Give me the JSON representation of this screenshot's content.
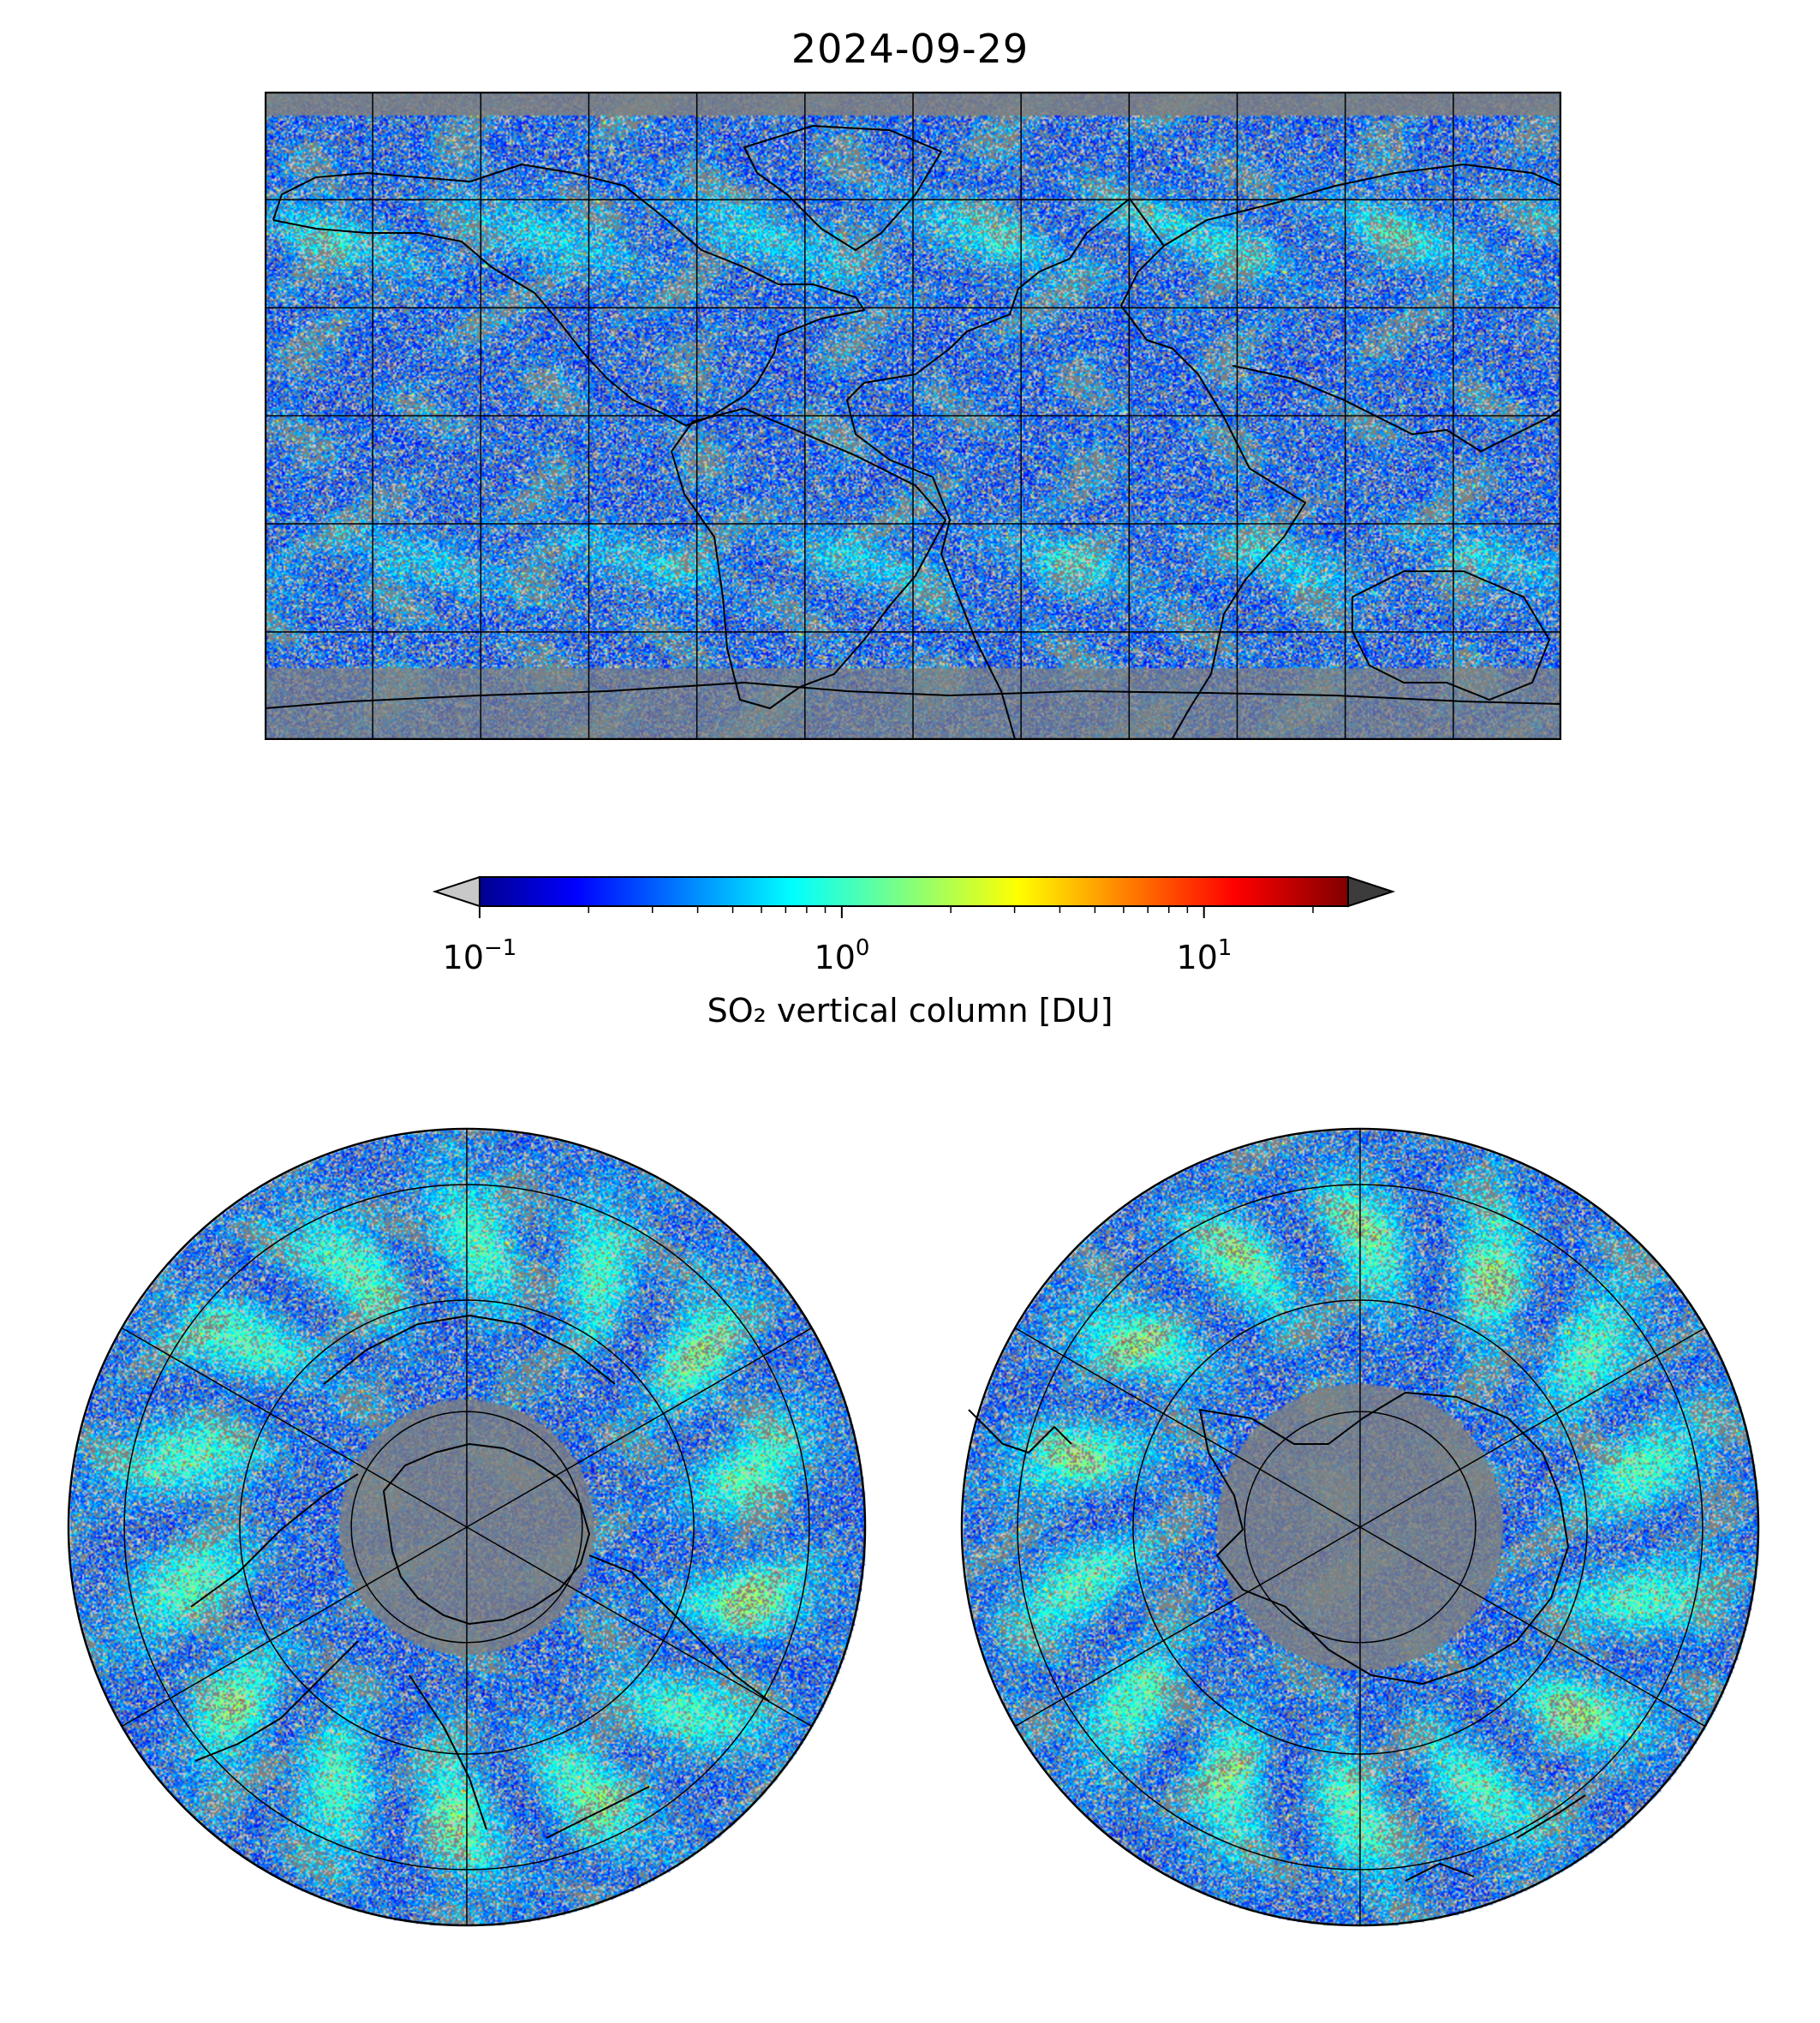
{
  "title": "2024-09-29",
  "colorbar": {
    "label": "SO₂ vertical column [DU]",
    "scale": "log",
    "range": [
      0.1,
      25
    ],
    "colormap": "jet",
    "under_color": "#c8c8c8",
    "over_color": "#3c3c3c",
    "ticks": [
      {
        "base": "10",
        "exp": "−1"
      },
      {
        "base": "10",
        "exp": "0"
      },
      {
        "base": "10",
        "exp": "1"
      }
    ]
  },
  "panels": {
    "world": {
      "projection": "plate carree",
      "gridlines": true,
      "coastlines": true
    },
    "north_pole": {
      "projection": "north polar stereographic",
      "gridlines": true,
      "coastlines": true
    },
    "south_pole": {
      "projection": "south polar stereographic",
      "gridlines": true,
      "coastlines": true
    }
  },
  "colors": {
    "no_data": "#808080",
    "below_range": "#c8c8c8",
    "coastline": "#000000",
    "gridline": "#000000"
  }
}
